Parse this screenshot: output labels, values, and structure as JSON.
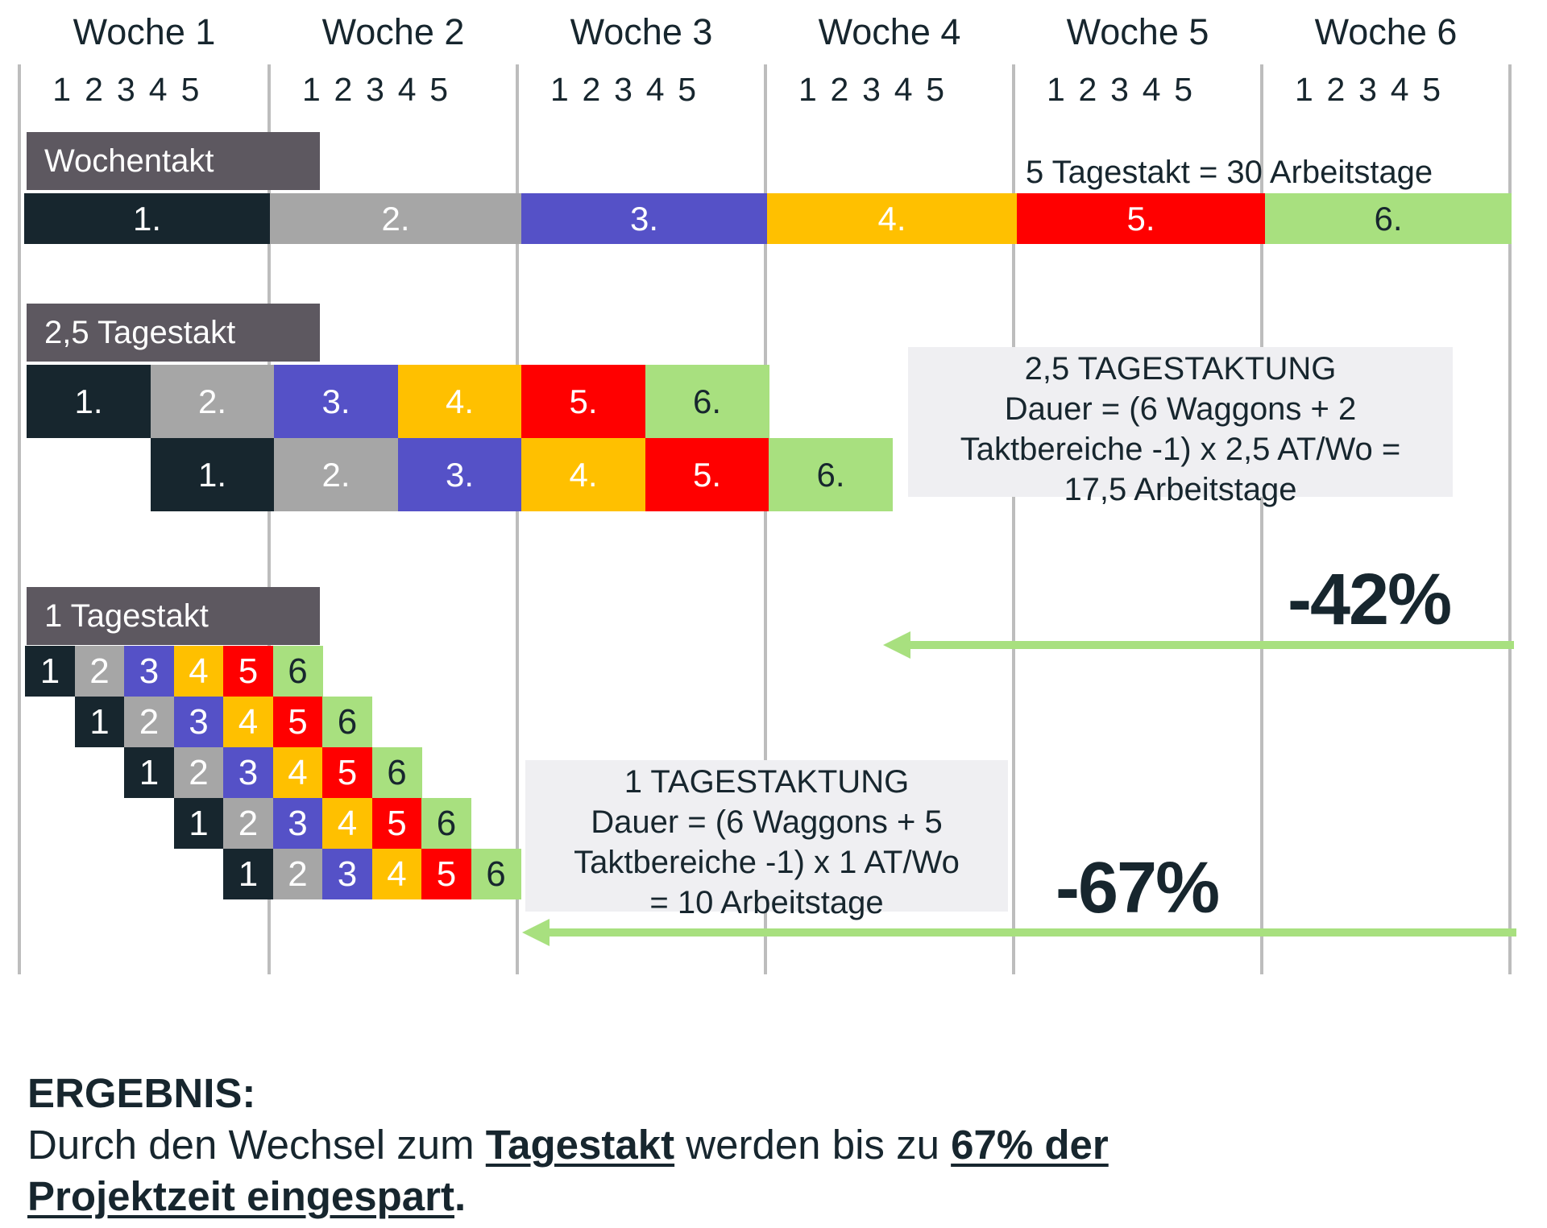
{
  "colors": {
    "c1": "#17262e",
    "c2": "#a6a6a6",
    "c3": "#5551c7",
    "c4": "#ffc000",
    "c5": "#ff0000",
    "c6": "#a8e07f",
    "label_bg": "#5d5860",
    "arrow": "#a8e07f"
  },
  "weeks": [
    "Woche 1",
    "Woche 2",
    "Woche 3",
    "Woche 4",
    "Woche 5",
    "Woche 6"
  ],
  "days": [
    "1",
    "2",
    "3",
    "4",
    "5"
  ],
  "sections": {
    "wochentakt": {
      "label": "Wochentakt",
      "annotation": "5 Tagestakt = 30 Arbeitstage",
      "cells": [
        "1.",
        "2.",
        "3.",
        "4.",
        "5.",
        "6."
      ]
    },
    "tagestakt_25": {
      "label": "2,5 Tagestakt",
      "rows": [
        [
          "1.",
          "2.",
          "3.",
          "4.",
          "5.",
          "6."
        ],
        [
          "1.",
          "2.",
          "3.",
          "4.",
          "5.",
          "6."
        ]
      ],
      "info": [
        "2,5 TAGESTAKTUNG",
        "Dauer = (6 Waggons + 2",
        "Taktbereiche -1) x 2,5 AT/Wo =",
        "17,5 Arbeitstage"
      ],
      "reduction": "-42%"
    },
    "tagestakt_1": {
      "label": "1 Tagestakt",
      "rows": [
        [
          "1",
          "2",
          "3",
          "4",
          "5",
          "6"
        ],
        [
          "1",
          "2",
          "3",
          "4",
          "5",
          "6"
        ],
        [
          "1",
          "2",
          "3",
          "4",
          "5",
          "6"
        ],
        [
          "1",
          "2",
          "3",
          "4",
          "5",
          "6"
        ],
        [
          "1",
          "2",
          "3",
          "4",
          "5",
          "6"
        ]
      ],
      "info": [
        "1 TAGESTAKTUNG",
        "Dauer = (6 Waggons + 5",
        "Taktbereiche -1) x 1 AT/Wo",
        "= 10 Arbeitstage"
      ],
      "reduction": "-67%"
    }
  },
  "result": {
    "heading": "ERGEBNIS:",
    "text_1": "Durch den Wechsel zum ",
    "bold_1": "Tagestakt",
    "text_2": " werden bis zu ",
    "bold_2": "67% der",
    "bold_3": "Projektzeit eingespart",
    "text_3": "."
  }
}
